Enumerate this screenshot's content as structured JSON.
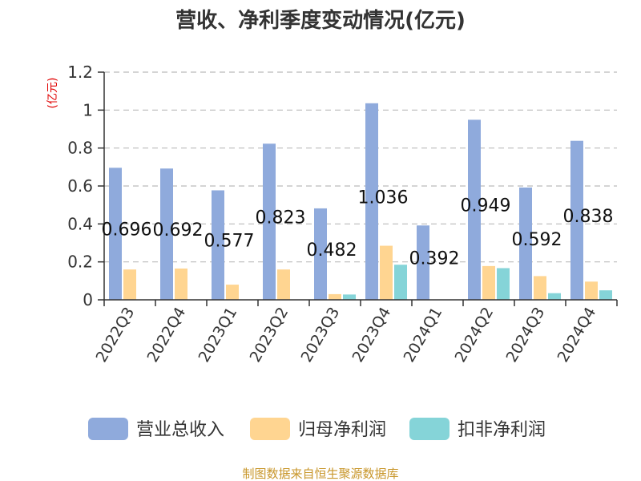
{
  "chart_data": {
    "type": "bar",
    "title": "营收、净利季度变动情况(亿元)",
    "ylabel": "(亿元)",
    "ylim": [
      0,
      1.2
    ],
    "yticks": [
      "0",
      "0.2",
      "0.4",
      "0.6",
      "0.8",
      "1",
      "1.2"
    ],
    "categories": [
      "2022Q3",
      "2022Q4",
      "2023Q1",
      "2023Q2",
      "2023Q3",
      "2023Q4",
      "2024Q1",
      "2024Q2",
      "2024Q3",
      "2024Q4"
    ],
    "series": [
      {
        "name": "营业总收入",
        "color": "#8faadc",
        "values": [
          0.696,
          0.692,
          0.577,
          0.823,
          0.482,
          1.036,
          0.392,
          0.949,
          0.592,
          0.838
        ],
        "labels": [
          "0.696",
          "0.692",
          "0.577",
          "0.823",
          "0.482",
          "1.036",
          "0.392",
          "0.949",
          "0.592",
          "0.838"
        ]
      },
      {
        "name": "归母净利润",
        "color": "#ffd591",
        "values": [
          0.16,
          0.165,
          0.08,
          0.16,
          0.03,
          0.285,
          0.0,
          0.178,
          0.125,
          0.096
        ]
      },
      {
        "name": "扣非净利润",
        "color": "#85d4d8",
        "values": [
          0.0,
          0.0,
          0.0,
          0.0,
          0.028,
          0.185,
          0.0,
          0.167,
          0.035,
          0.05
        ]
      }
    ],
    "grid": true,
    "legend_position": "bottom"
  },
  "footer": {
    "source": "制图数据来自恒生聚源数据库"
  }
}
